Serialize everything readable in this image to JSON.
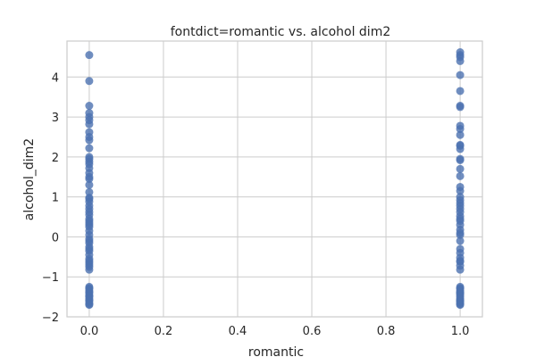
{
  "chart_data": {
    "type": "scatter",
    "title": "fontdict=romantic vs. alcohol dim2",
    "xlabel": "romantic",
    "ylabel": "alcohol_dim2",
    "xlim": [
      -0.06,
      1.06
    ],
    "ylim": [
      -2.0,
      4.9
    ],
    "x_ticks": [
      0.0,
      0.2,
      0.4,
      0.6,
      0.8,
      1.0
    ],
    "x_tick_labels": [
      "0.0",
      "0.2",
      "0.4",
      "0.6",
      "0.8",
      "1.0"
    ],
    "y_ticks": [
      -2,
      -1,
      0,
      1,
      2,
      3,
      4
    ],
    "y_tick_labels": [
      "−2",
      "−1",
      "0",
      "1",
      "2",
      "3",
      "4"
    ],
    "grid": true,
    "marker_color": "#4c72b0",
    "series": [
      {
        "x": [
          0,
          0,
          0,
          0,
          0,
          0,
          0,
          0,
          0,
          0,
          0,
          0,
          0,
          0,
          0,
          0,
          0,
          0,
          0,
          0,
          0,
          0,
          0,
          0,
          0,
          0,
          0,
          0,
          0,
          0,
          0,
          0,
          0,
          0,
          0,
          0,
          0,
          0,
          0,
          0,
          0,
          0,
          0,
          0,
          0,
          0,
          0,
          0,
          0,
          0,
          0,
          0,
          0,
          0,
          0,
          0,
          0,
          0,
          0,
          0,
          0,
          0,
          0
        ],
        "y": [
          4.55,
          3.9,
          3.28,
          3.1,
          3.0,
          2.92,
          2.82,
          2.62,
          2.5,
          2.22,
          1.95,
          1.88,
          1.72,
          1.6,
          1.45,
          1.3,
          1.12,
          0.98,
          0.88,
          0.78,
          0.7,
          0.62,
          0.55,
          0.45,
          0.35,
          0.25,
          0.15,
          0.05,
          -0.05,
          -0.15,
          -0.25,
          -0.35,
          -0.45,
          -0.55,
          -0.65,
          -0.75,
          -0.82,
          -1.25,
          -1.3,
          -1.35,
          -1.4,
          -1.45,
          -1.5,
          -1.55,
          -1.6,
          -1.65,
          -1.7,
          2.42,
          1.82,
          0.95,
          0.4,
          -0.1,
          -0.6,
          -1.28,
          -1.38,
          -1.48,
          -1.58,
          -1.68,
          2.0,
          1.5,
          0.3,
          -0.3,
          -0.7
        ]
      },
      {
        "x": [
          1,
          1,
          1,
          1,
          1,
          1,
          1,
          1,
          1,
          1,
          1,
          1,
          1,
          1,
          1,
          1,
          1,
          1,
          1,
          1,
          1,
          1,
          1,
          1,
          1,
          1,
          1,
          1,
          1,
          1,
          1,
          1,
          1,
          1,
          1,
          1,
          1,
          1,
          1,
          1,
          1,
          1,
          1,
          1,
          1,
          1,
          1,
          1,
          1,
          1,
          1,
          1,
          1,
          1,
          1,
          1,
          1
        ],
        "y": [
          4.62,
          4.55,
          4.4,
          4.05,
          3.65,
          3.28,
          2.78,
          2.7,
          2.55,
          2.3,
          2.2,
          1.95,
          1.7,
          1.52,
          1.25,
          1.0,
          0.92,
          0.78,
          0.62,
          0.52,
          0.4,
          0.3,
          0.18,
          0.05,
          -0.1,
          -0.4,
          -0.52,
          -0.62,
          -0.72,
          -0.82,
          -1.25,
          -1.3,
          -1.35,
          -1.4,
          -1.45,
          -1.5,
          -1.55,
          -1.6,
          -1.65,
          -1.7,
          4.5,
          3.25,
          1.92,
          0.85,
          0.1,
          -0.3,
          -1.28,
          -1.42,
          -1.58,
          -1.68,
          2.28,
          1.15,
          0.7,
          0.45,
          -0.6,
          -1.38,
          -1.62
        ]
      }
    ]
  }
}
